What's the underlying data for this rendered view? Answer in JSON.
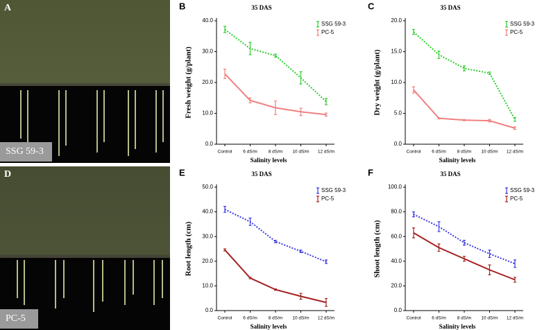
{
  "photos": [
    {
      "label": "A",
      "caption": "SSG 59-3"
    },
    {
      "label": "D",
      "caption": "PC-5"
    }
  ],
  "chart_data": [
    {
      "type": "line",
      "label": "B",
      "title": "35 DAS",
      "x_label": "Salinity levels",
      "y_label": "Fresh weight (g/plant)",
      "categories": [
        "Control",
        "6 dS/m",
        "8 dS/m",
        "10 dS/m",
        "12 dS/m"
      ],
      "ylim": [
        0,
        40
      ],
      "yticks": [
        {
          "value": 0,
          "label": "0.0"
        },
        {
          "value": 10,
          "label": "10.0"
        },
        {
          "value": 20,
          "label": "20.0"
        },
        {
          "value": 30,
          "label": "30.0"
        },
        {
          "value": 40,
          "label": "40.0"
        }
      ],
      "series": [
        {
          "name": "SSG 59-3",
          "color": "#2ecc2e",
          "line_style": "dotted",
          "values": [
            37.2,
            31,
            28.7,
            21.5,
            13.8
          ],
          "errors": [
            1,
            2,
            0.5,
            2,
            1
          ]
        },
        {
          "name": "PC-5",
          "color": "#f08080",
          "line_style": "solid",
          "values": [
            22.8,
            14.2,
            11.8,
            10.5,
            9.6
          ],
          "errors": [
            1.5,
            0.8,
            2.2,
            1.2,
            0.5
          ]
        }
      ]
    },
    {
      "type": "line",
      "label": "C",
      "title": "35 DAS",
      "x_label": "Salinity levels",
      "y_label": "Dry weight (g/plant)",
      "categories": [
        "Control",
        "6 dS/m",
        "8 dS/m",
        "10 dS/m",
        "12 dS/m"
      ],
      "ylim": [
        0,
        20
      ],
      "yticks": [
        {
          "value": 0,
          "label": "0.0"
        },
        {
          "value": 5,
          "label": "5.0"
        },
        {
          "value": 10,
          "label": "10.0"
        },
        {
          "value": 15,
          "label": "15.0"
        },
        {
          "value": 20,
          "label": "20.0"
        }
      ],
      "series": [
        {
          "name": "SSG 59-3",
          "color": "#2ecc2e",
          "line_style": "dotted",
          "values": [
            18.2,
            14.5,
            12.3,
            11.5,
            4.0
          ],
          "errors": [
            0.4,
            0.6,
            0.4,
            0.2,
            0.3
          ]
        },
        {
          "name": "PC-5",
          "color": "#f08080",
          "line_style": "solid",
          "values": [
            8.8,
            4.2,
            3.9,
            3.8,
            2.6
          ],
          "errors": [
            0.5,
            0.1,
            0.1,
            0.2,
            0.2
          ]
        }
      ]
    },
    {
      "type": "line",
      "label": "E",
      "title": "35 DAS",
      "x_label": "Salinity levels",
      "y_label": "Root length (cm)",
      "categories": [
        "Control",
        "6 dS/m",
        "8 dS/m",
        "10 dS/m",
        "12 dS/m"
      ],
      "ylim": [
        0,
        50
      ],
      "yticks": [
        {
          "value": 0,
          "label": "0.0"
        },
        {
          "value": 10,
          "label": "10.0"
        },
        {
          "value": 20,
          "label": "20.0"
        },
        {
          "value": 30,
          "label": "30.0"
        },
        {
          "value": 40,
          "label": "40.0"
        },
        {
          "value": 50,
          "label": "50.0"
        }
      ],
      "series": [
        {
          "name": "SSG 59-3",
          "color": "#3a3ae0",
          "line_style": "dotted",
          "values": [
            41,
            36,
            28,
            24,
            19.8
          ],
          "errors": [
            1.2,
            1.5,
            0.5,
            0.5,
            0.7
          ]
        },
        {
          "name": "PC-5",
          "color": "#a52020",
          "line_style": "solid",
          "values": [
            24.6,
            13.2,
            8.5,
            5.8,
            3.3
          ],
          "errors": [
            0.4,
            0.3,
            0.3,
            1.2,
            1.6
          ]
        }
      ]
    },
    {
      "type": "line",
      "label": "F",
      "title": "35 DAS",
      "x_label": "Salinity levels",
      "y_label": "Shoot length (cm)",
      "categories": [
        "Control",
        "6 dS/m",
        "8 dS/m",
        "10 dS/m",
        "12 dS/m"
      ],
      "ylim": [
        0,
        100
      ],
      "yticks": [
        {
          "value": 0,
          "label": "0.0"
        },
        {
          "value": 20,
          "label": "20.0"
        },
        {
          "value": 40,
          "label": "40.0"
        },
        {
          "value": 60,
          "label": "60.0"
        },
        {
          "value": 80,
          "label": "80.0"
        },
        {
          "value": 100,
          "label": "100.0"
        }
      ],
      "series": [
        {
          "name": "SSG 59-3",
          "color": "#3a3ae0",
          "line_style": "dotted",
          "values": [
            78,
            68,
            55,
            46,
            38
          ],
          "errors": [
            2,
            4,
            2,
            3,
            3
          ]
        },
        {
          "name": "PC-5",
          "color": "#a52020",
          "line_style": "solid",
          "values": [
            63,
            51,
            42,
            33,
            25
          ],
          "errors": [
            4,
            3,
            2,
            4,
            2
          ]
        }
      ]
    }
  ]
}
